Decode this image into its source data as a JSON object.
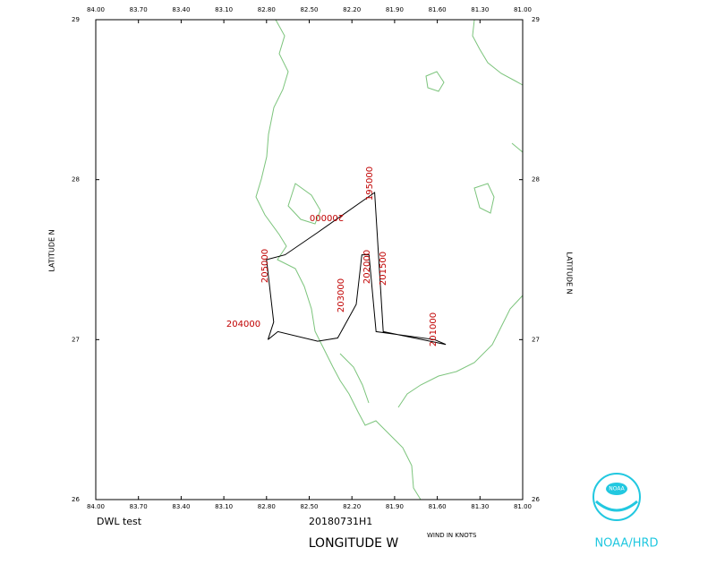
{
  "map": {
    "title_left": "DWL test",
    "date": "20180731H1",
    "x_label": "LONGITUDE  W",
    "y_label_left": "LATITUDE  N",
    "y_label_right": "LATITUDE  N",
    "note": "WIND IN KNOTS",
    "xlim": [
      84,
      81
    ],
    "ylim": [
      26,
      29
    ],
    "xticks": [
      {
        "value": 84,
        "label": "84.00"
      },
      {
        "value": 83.7,
        "label": "83.70"
      },
      {
        "value": 83.4,
        "label": "83.40"
      },
      {
        "value": 83.1,
        "label": "83.10"
      },
      {
        "value": 82.8,
        "label": "82.80"
      },
      {
        "value": 82.5,
        "label": "82.50"
      },
      {
        "value": 82.2,
        "label": "82.20"
      },
      {
        "value": 81.9,
        "label": "81.90"
      },
      {
        "value": 81.6,
        "label": "81.60"
      },
      {
        "value": 81.3,
        "label": "81.30"
      },
      {
        "value": 81,
        "label": "81.00"
      }
    ],
    "yticks": [
      29,
      28,
      27,
      26
    ],
    "track": {
      "lon": [
        82.79,
        82.75,
        82.8,
        82.67,
        82.44,
        82.04,
        81.98,
        81.54,
        81.62,
        82.03,
        82.08,
        82.13,
        82.17,
        82.3,
        82.44,
        82.72,
        82.79
      ],
      "lat": [
        27.0,
        27.11,
        27.5,
        27.53,
        27.67,
        27.92,
        27.05,
        26.97,
        27.0,
        27.05,
        27.53,
        27.53,
        27.22,
        27.01,
        26.99,
        27.05,
        27.0
      ]
    },
    "time_labels": [
      "195000",
      "200000",
      "205000",
      "204000",
      "203000",
      "202000",
      "201500",
      "201000"
    ]
  },
  "logo": {
    "text": "NOAA",
    "caption": "NOAA/HRD"
  }
}
